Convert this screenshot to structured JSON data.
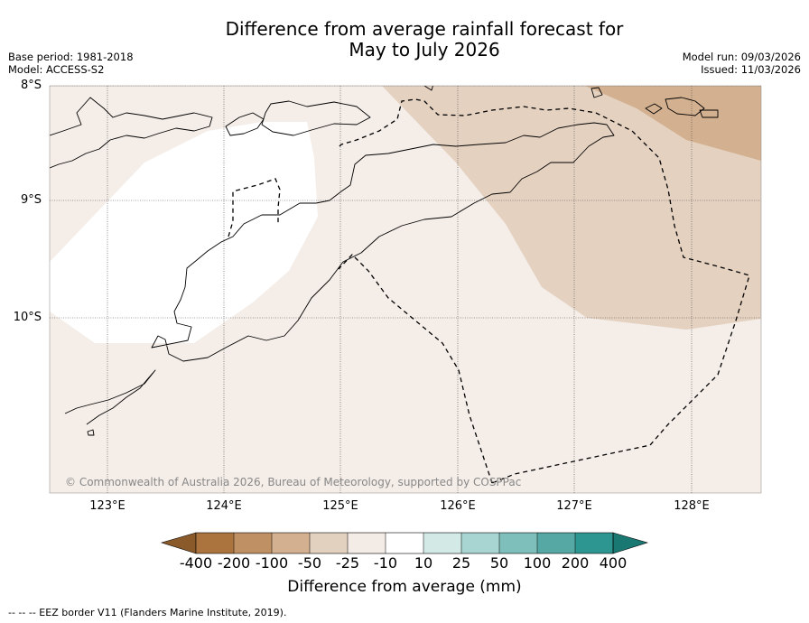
{
  "title": {
    "line1": "Difference from average rainfall forecast for",
    "line2": "May to July 2026"
  },
  "meta_left": {
    "base_period": "Base period: 1981-2018",
    "model": "Model: ACCESS-S2"
  },
  "meta_right": {
    "model_run": "Model run: 09/03/2026",
    "issued": "Issued: 11/03/2026"
  },
  "lat_labels": [
    "8°S",
    "9°S",
    "10°S"
  ],
  "lon_labels": [
    "123°E",
    "124°E",
    "125°E",
    "126°E",
    "127°E",
    "128°E"
  ],
  "copyright": "© Commonwealth of Australia 2026, Bureau of Meteorology, supported by COSPPac",
  "colorbar": {
    "title": "Difference from average (mm)",
    "labels": [
      "-400",
      "-200",
      "-100",
      "-50",
      "-25",
      "-10",
      "10",
      "25",
      "50",
      "100",
      "200",
      "400"
    ],
    "colors": [
      "#8b5a2b",
      "#ab743e",
      "#bf9063",
      "#d3b08f",
      "#e3d1c0",
      "#f3ebe6",
      "#ffffff",
      "#d3e9e6",
      "#a8d5d1",
      "#7fbfbb",
      "#56a8a4",
      "#2d9690",
      "#1a7872"
    ]
  },
  "footnote": "--  --  -- EEZ border V11 (Flanders Marine Institute, 2019).",
  "colors": {
    "light_brown": "#f4ede8",
    "mid_brown": "#e4d1c0",
    "dark_brown": "#d3b08f"
  }
}
